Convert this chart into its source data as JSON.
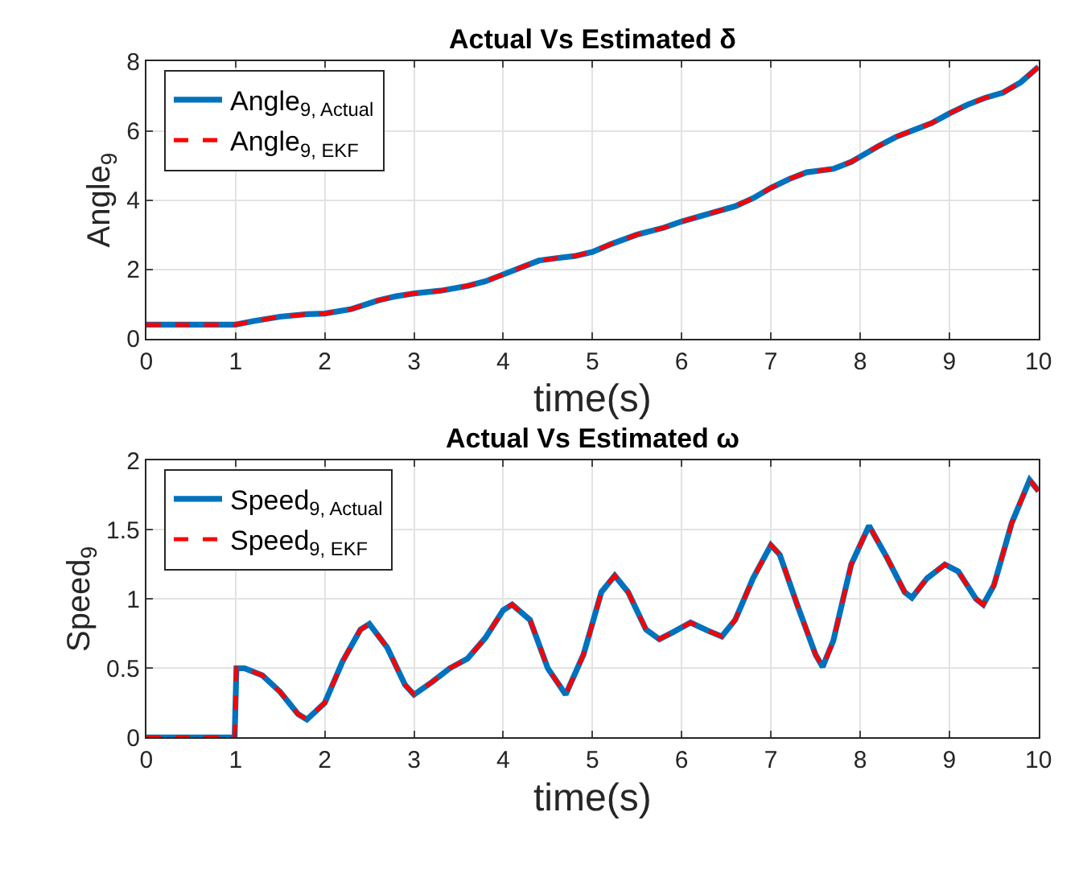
{
  "chart_data": [
    {
      "type": "line",
      "title": "Actual Vs Estimated δ",
      "xlabel": "time(s)",
      "ylabel": "Angle$_{9}$",
      "xlim": [
        0,
        10
      ],
      "xticks": [
        0,
        1,
        2,
        3,
        4,
        5,
        6,
        7,
        8,
        9,
        10
      ],
      "ylim": [
        0,
        8
      ],
      "yticks": [
        0,
        2,
        4,
        6,
        8
      ],
      "grid": true,
      "legend": "top left",
      "x": [
        0,
        0.5,
        1,
        1.2,
        1.5,
        1.8,
        2,
        2.3,
        2.6,
        2.8,
        3,
        3.3,
        3.6,
        3.8,
        4,
        4.2,
        4.4,
        4.6,
        4.8,
        5,
        5.2,
        5.5,
        5.8,
        6,
        6.3,
        6.6,
        6.8,
        7,
        7.2,
        7.4,
        7.7,
        7.9,
        8,
        8.2,
        8.4,
        8.6,
        8.8,
        9,
        9.2,
        9.4,
        9.6,
        9.8,
        10
      ],
      "series": [
        {
          "name": "Angle$_{9, Actual}$",
          "color": "#0072bd",
          "line_style": "solid",
          "values": [
            0.4,
            0.4,
            0.4,
            0.5,
            0.63,
            0.7,
            0.72,
            0.85,
            1.1,
            1.22,
            1.3,
            1.38,
            1.52,
            1.65,
            1.85,
            2.05,
            2.25,
            2.32,
            2.38,
            2.5,
            2.72,
            3.0,
            3.2,
            3.38,
            3.6,
            3.82,
            4.05,
            4.35,
            4.6,
            4.8,
            4.9,
            5.1,
            5.25,
            5.55,
            5.82,
            6.02,
            6.22,
            6.5,
            6.75,
            6.95,
            7.1,
            7.4,
            7.85
          ]
        },
        {
          "name": "Angle$_{9, EKF}$",
          "color": "#ff0000",
          "line_style": "dashed",
          "values": [
            0.4,
            0.4,
            0.4,
            0.5,
            0.63,
            0.7,
            0.72,
            0.85,
            1.1,
            1.22,
            1.3,
            1.38,
            1.52,
            1.65,
            1.85,
            2.05,
            2.25,
            2.32,
            2.38,
            2.5,
            2.72,
            3.0,
            3.2,
            3.38,
            3.6,
            3.82,
            4.05,
            4.35,
            4.6,
            4.8,
            4.9,
            5.1,
            5.25,
            5.55,
            5.82,
            6.02,
            6.22,
            6.5,
            6.75,
            6.95,
            7.1,
            7.4,
            7.85
          ]
        }
      ]
    },
    {
      "type": "line",
      "title": "Actual Vs Estimated ω",
      "xlabel": "time(s)",
      "ylabel": "Speed$_{9}$",
      "xlim": [
        0,
        10
      ],
      "xticks": [
        0,
        1,
        2,
        3,
        4,
        5,
        6,
        7,
        8,
        9,
        10
      ],
      "ylim": [
        0,
        2
      ],
      "yticks": [
        0,
        0.5,
        1,
        1.5,
        2
      ],
      "grid": true,
      "legend": "top left",
      "x": [
        0,
        0.99,
        1.01,
        1.1,
        1.3,
        1.5,
        1.7,
        1.8,
        2,
        2.2,
        2.4,
        2.5,
        2.7,
        2.9,
        3,
        3.2,
        3.4,
        3.6,
        3.8,
        4,
        4.1,
        4.3,
        4.5,
        4.7,
        4.9,
        5.1,
        5.25,
        5.4,
        5.6,
        5.75,
        5.9,
        6.1,
        6.3,
        6.45,
        6.6,
        6.8,
        7,
        7.1,
        7.3,
        7.5,
        7.58,
        7.7,
        7.9,
        8.1,
        8.3,
        8.5,
        8.58,
        8.75,
        8.95,
        9.1,
        9.3,
        9.38,
        9.5,
        9.7,
        9.9,
        10
      ],
      "series": [
        {
          "name": "Speed$_{9, Actual}$",
          "color": "#0072bd",
          "line_style": "solid",
          "values": [
            0,
            0,
            0.5,
            0.5,
            0.45,
            0.33,
            0.17,
            0.13,
            0.25,
            0.55,
            0.78,
            0.82,
            0.65,
            0.38,
            0.31,
            0.4,
            0.5,
            0.57,
            0.72,
            0.92,
            0.96,
            0.85,
            0.5,
            0.31,
            0.6,
            1.05,
            1.17,
            1.05,
            0.78,
            0.71,
            0.76,
            0.83,
            0.77,
            0.73,
            0.85,
            1.15,
            1.39,
            1.32,
            0.95,
            0.6,
            0.51,
            0.7,
            1.25,
            1.53,
            1.3,
            1.05,
            1.01,
            1.15,
            1.25,
            1.2,
            1.0,
            0.96,
            1.1,
            1.55,
            1.86,
            1.78
          ]
        },
        {
          "name": "Speed$_{9, EKF}$",
          "color": "#ff0000",
          "line_style": "dashed",
          "values": [
            0,
            0,
            0.5,
            0.5,
            0.45,
            0.33,
            0.17,
            0.13,
            0.25,
            0.55,
            0.78,
            0.82,
            0.65,
            0.38,
            0.31,
            0.4,
            0.5,
            0.57,
            0.72,
            0.92,
            0.96,
            0.85,
            0.5,
            0.31,
            0.6,
            1.05,
            1.17,
            1.05,
            0.78,
            0.71,
            0.76,
            0.83,
            0.77,
            0.73,
            0.85,
            1.15,
            1.39,
            1.32,
            0.95,
            0.6,
            0.51,
            0.7,
            1.25,
            1.53,
            1.3,
            1.05,
            1.01,
            1.15,
            1.25,
            1.2,
            1.0,
            0.96,
            1.1,
            1.55,
            1.86,
            1.78
          ]
        }
      ]
    }
  ]
}
